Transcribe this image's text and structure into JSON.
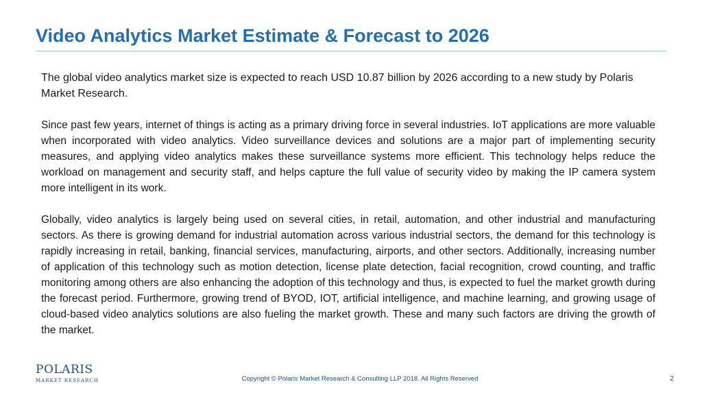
{
  "slide": {
    "title": "Video Analytics Market Estimate & Forecast to 2026",
    "paragraphs": [
      "The global video analytics market size is expected to reach USD 10.87 billion by 2026 according to a new study by Polaris Market Research.",
      "Since past few years, internet of things is acting as a primary driving force in several industries. IoT applications are more valuable when incorporated with video analytics. Video surveillance devices and solutions are a major part of implementing security measures, and applying video analytics makes these surveillance systems more efficient. This technology helps reduce the workload on management and security staff, and helps capture the full value of security video by making the IP camera system more intelligent in its work.",
      "Globally, video analytics is largely being used on several cities, in retail, automation, and other industrial and manufacturing sectors. As there is growing demand for industrial automation across various industrial sectors, the demand for this technology is rapidly increasing in retail, banking, financial services, manufacturing, airports, and other sectors. Additionally, increasing number of application of this technology such as motion detection, license plate detection, facial recognition, crowd counting, and traffic monitoring among others are also enhancing the adoption of this technology and thus, is expected to fuel the market growth during the forecast period. Furthermore, growing trend of BYOD, IOT, artificial intelligence, and machine learning, and growing usage of cloud-based video analytics solutions are also fueling the market growth. These and many such factors are driving the growth of the market."
    ]
  },
  "logo": {
    "wordmark": "POLARIS",
    "subtitle": "MARKET RESEARCH"
  },
  "footer": {
    "copyright": "Copyright © Polaris Market Research & Consulting LLP 2018. All Rights Reserved",
    "page_number": "2"
  },
  "colors": {
    "title": "#1f6fb2",
    "rule": "#9cc3e0",
    "footer": "#1f4e8c",
    "logo": "#1f4e8c"
  }
}
